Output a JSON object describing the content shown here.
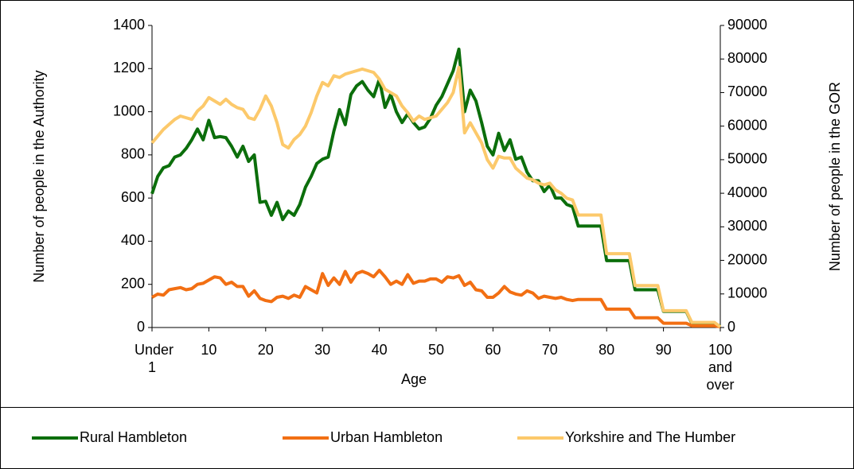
{
  "chart_data": {
    "type": "line",
    "x_label": "Age",
    "y_label": "Number of people in the Authority",
    "y2_label": "Number of people in the GOR",
    "categories": [
      "Under 1",
      null,
      null,
      null,
      null,
      null,
      null,
      null,
      null,
      null,
      "10",
      null,
      null,
      null,
      null,
      null,
      null,
      null,
      null,
      null,
      "20",
      null,
      null,
      null,
      null,
      null,
      null,
      null,
      null,
      null,
      "30",
      null,
      null,
      null,
      null,
      null,
      null,
      null,
      null,
      null,
      "40",
      null,
      null,
      null,
      null,
      null,
      null,
      null,
      null,
      null,
      "50",
      null,
      null,
      null,
      null,
      null,
      null,
      null,
      null,
      null,
      "60",
      null,
      null,
      null,
      null,
      null,
      null,
      null,
      null,
      null,
      "70",
      null,
      null,
      null,
      null,
      null,
      null,
      null,
      null,
      null,
      "80",
      null,
      null,
      null,
      null,
      null,
      null,
      null,
      null,
      null,
      "90",
      null,
      null,
      null,
      null,
      null,
      null,
      null,
      null,
      null,
      "100 and over"
    ],
    "ylim": [
      0,
      1400
    ],
    "yticks": [
      0,
      200,
      400,
      600,
      800,
      1000,
      1200,
      1400
    ],
    "y2lim": [
      0,
      90000
    ],
    "y2ticks": [
      0,
      10000,
      20000,
      30000,
      40000,
      50000,
      60000,
      70000,
      80000,
      90000
    ],
    "legend": "bottom",
    "series": [
      {
        "name": "Rural Hambleton",
        "color": "#0b6e0b",
        "values": [
          620,
          700,
          740,
          750,
          790,
          800,
          830,
          870,
          920,
          870,
          960,
          880,
          885,
          880,
          840,
          790,
          840,
          770,
          800,
          580,
          585,
          520,
          580,
          500,
          540,
          520,
          570,
          650,
          700,
          760,
          780,
          790,
          910,
          1010,
          940,
          1080,
          1120,
          1140,
          1100,
          1070,
          1150,
          1020,
          1080,
          1000,
          950,
          990,
          950,
          920,
          930,
          970,
          1030,
          1070,
          1130,
          1190,
          1290,
          1000,
          1100,
          1050,
          950,
          840,
          800,
          900,
          820,
          870,
          780,
          790,
          720,
          680,
          680,
          630,
          660,
          600,
          600,
          570,
          560,
          470,
          470,
          470,
          470,
          470,
          310,
          310,
          310,
          310,
          310,
          175,
          175,
          175,
          175,
          175,
          75,
          75,
          75,
          75,
          75,
          20,
          20,
          20,
          20,
          20,
          5
        ]
      },
      {
        "name": "Urban Hambleton",
        "color": "#f26f13",
        "values": [
          140,
          155,
          150,
          175,
          180,
          185,
          175,
          180,
          200,
          205,
          220,
          235,
          230,
          200,
          210,
          190,
          190,
          145,
          170,
          135,
          125,
          120,
          140,
          145,
          135,
          150,
          140,
          190,
          175,
          160,
          250,
          195,
          230,
          200,
          260,
          210,
          250,
          260,
          250,
          235,
          265,
          235,
          200,
          215,
          200,
          245,
          205,
          215,
          215,
          225,
          225,
          210,
          235,
          230,
          240,
          195,
          210,
          175,
          170,
          140,
          140,
          160,
          190,
          165,
          155,
          150,
          170,
          160,
          135,
          145,
          140,
          135,
          140,
          130,
          125,
          130,
          130,
          130,
          130,
          130,
          85,
          85,
          85,
          85,
          85,
          45,
          45,
          45,
          45,
          45,
          20,
          20,
          20,
          20,
          20,
          8,
          8,
          8,
          8,
          8,
          3
        ]
      },
      {
        "name": "Yorkshire and The Humber",
        "color": "#fcc96b",
        "axis": "y2",
        "values": [
          55000,
          57000,
          59000,
          60500,
          62000,
          63000,
          62500,
          62000,
          64500,
          66000,
          68500,
          67500,
          66500,
          68000,
          66500,
          65500,
          65000,
          62500,
          62000,
          65000,
          69000,
          66000,
          61000,
          54500,
          53500,
          56000,
          57500,
          60000,
          64000,
          69000,
          73000,
          72000,
          75000,
          74500,
          75500,
          76000,
          76500,
          77000,
          76500,
          76000,
          74000,
          71000,
          70000,
          69000,
          66000,
          64000,
          61500,
          63000,
          62000,
          62500,
          63000,
          65000,
          67000,
          70000,
          77500,
          58000,
          61000,
          58000,
          55000,
          50000,
          47500,
          51000,
          50500,
          50500,
          47500,
          46000,
          44500,
          44000,
          43000,
          42500,
          43000,
          41000,
          40000,
          38500,
          38000,
          33500,
          33500,
          33500,
          33500,
          33500,
          22000,
          22000,
          22000,
          22000,
          22000,
          12500,
          12500,
          12500,
          12500,
          12500,
          5000,
          5000,
          5000,
          5000,
          5000,
          1500,
          1500,
          1500,
          1500,
          1500,
          200
        ]
      }
    ]
  }
}
